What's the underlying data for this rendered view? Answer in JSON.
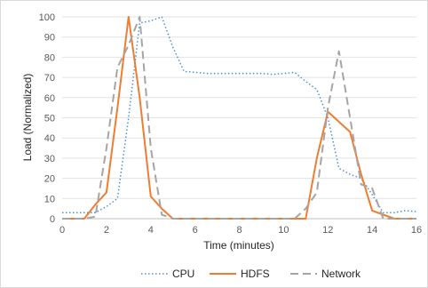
{
  "chart_data": {
    "type": "line",
    "xlabel": "Time (minutes)",
    "ylabel": "Load (Normalized)",
    "xlim": [
      0,
      16
    ],
    "ylim": [
      0,
      100
    ],
    "xticks": [
      "0",
      "2",
      "4",
      "6",
      "8",
      "10",
      "12",
      "14",
      "16"
    ],
    "yticks": [
      "0",
      "10",
      "20",
      "30",
      "40",
      "50",
      "60",
      "70",
      "80",
      "90",
      "100"
    ],
    "grid": "horizontal",
    "legend": "bottom",
    "series": [
      {
        "name": "CPU",
        "color": "#4a90d9",
        "style": "dotted",
        "x": [
          0,
          0.5,
          1,
          1.5,
          2,
          2.5,
          3,
          3.5,
          4,
          4.5,
          5,
          5.5,
          6,
          6.5,
          7,
          7.5,
          8,
          8.5,
          9,
          9.5,
          10,
          10.5,
          11,
          11.5,
          12,
          12.5,
          13,
          13.5,
          14,
          14.5,
          15,
          15.5,
          16
        ],
        "y": [
          3,
          3,
          3,
          3,
          6,
          10,
          50,
          97,
          98,
          100,
          85,
          73,
          72.5,
          72,
          72,
          72,
          72,
          72,
          72,
          71.5,
          72,
          72.5,
          68,
          64,
          50,
          25,
          22,
          20,
          12,
          3,
          3,
          4,
          3.5
        ]
      },
      {
        "name": "HDFS",
        "color": "#ed7d31",
        "style": "solid",
        "x": [
          0,
          0.5,
          1,
          1.5,
          2,
          2.5,
          3,
          3.5,
          4,
          4.5,
          5,
          5.5,
          6,
          6.5,
          7,
          7.5,
          8,
          8.5,
          9,
          9.5,
          10,
          10.5,
          11,
          11.5,
          12,
          12.5,
          13,
          13.5,
          14,
          14.5,
          15,
          15.5,
          16
        ],
        "y": [
          0,
          0,
          0,
          7,
          13,
          55,
          100,
          60,
          11,
          5,
          0,
          0,
          0,
          0,
          0,
          0,
          0,
          0,
          0,
          0,
          0,
          0,
          0,
          30,
          53,
          48,
          43,
          22,
          4,
          2,
          0,
          0,
          0
        ]
      },
      {
        "name": "Network",
        "color": "#a5a5a5",
        "style": "dashed",
        "x": [
          0,
          0.5,
          1,
          1.5,
          2,
          2.5,
          3,
          3.5,
          4,
          4.5,
          5,
          5.5,
          6,
          6.5,
          7,
          7.5,
          8,
          8.5,
          9,
          9.5,
          10,
          10.5,
          11,
          11.5,
          12,
          12.5,
          13,
          13.5,
          14,
          14.5,
          15,
          15.5,
          16
        ],
        "y": [
          0,
          0,
          0,
          1,
          35,
          75,
          86,
          100,
          35,
          2,
          0,
          0,
          0,
          0,
          0,
          0,
          0,
          0,
          0,
          0,
          0,
          0,
          5,
          13,
          55,
          83,
          50,
          17,
          15,
          0,
          0,
          0,
          0
        ]
      }
    ]
  }
}
